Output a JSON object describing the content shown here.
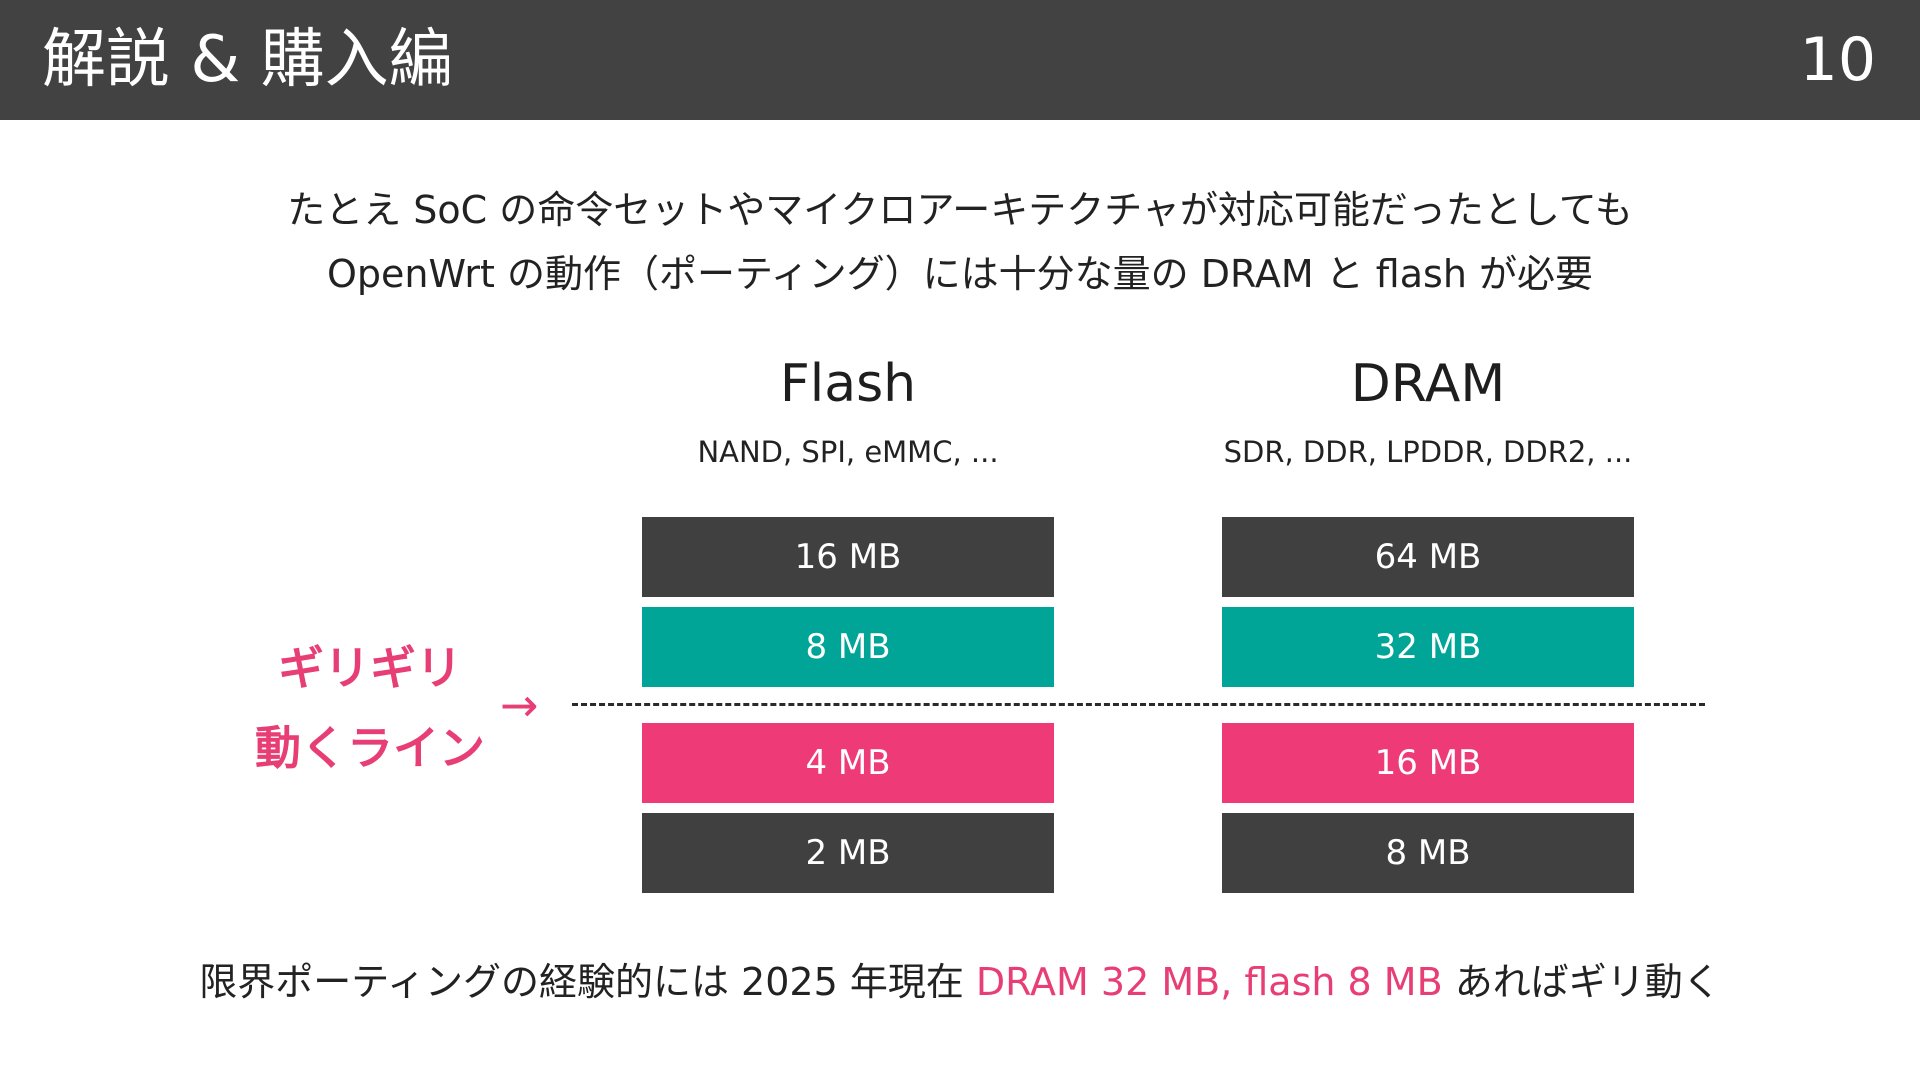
{
  "header": {
    "title": "解説 & 購入編",
    "page_number": "10"
  },
  "intro": {
    "line1": "たとえ SoC の命令セットやマイクロアーキテクチャが対応可能だったとしても",
    "line2": "OpenWrt の動作（ポーティング）には十分な量の DRAM と flash が必要"
  },
  "columns": [
    {
      "title": "Flash",
      "subtitle": "NAND, SPI, eMMC, ...",
      "boxes": [
        {
          "label": "16 MB",
          "color": "#404040"
        },
        {
          "label": "8 MB",
          "color": "#00a598"
        },
        {
          "label": "4 MB",
          "color": "#ee3a76"
        },
        {
          "label": "2 MB",
          "color": "#404040"
        }
      ]
    },
    {
      "title": "DRAM",
      "subtitle": "SDR, DDR, LPDDR, DDR2, ...",
      "boxes": [
        {
          "label": "64 MB",
          "color": "#404040"
        },
        {
          "label": "32 MB",
          "color": "#00a598"
        },
        {
          "label": "16 MB",
          "color": "#ee3a76"
        },
        {
          "label": "8 MB",
          "color": "#404040"
        }
      ]
    }
  ],
  "limit_label": {
    "line1": "ギリギリ",
    "line2": "動くライン",
    "arrow": "→",
    "color": "#e83e76"
  },
  "conclusion": {
    "prefix": "限界ポーティングの経験的には 2025 年現在 ",
    "highlight": "DRAM 32 MB, flash 8 MB",
    "suffix": " あればギリ動く"
  },
  "colors": {
    "header_bg": "#424242",
    "dark_box": "#404040",
    "teal_box": "#00a598",
    "pink_box": "#ee3a76",
    "accent": "#e83e76"
  }
}
